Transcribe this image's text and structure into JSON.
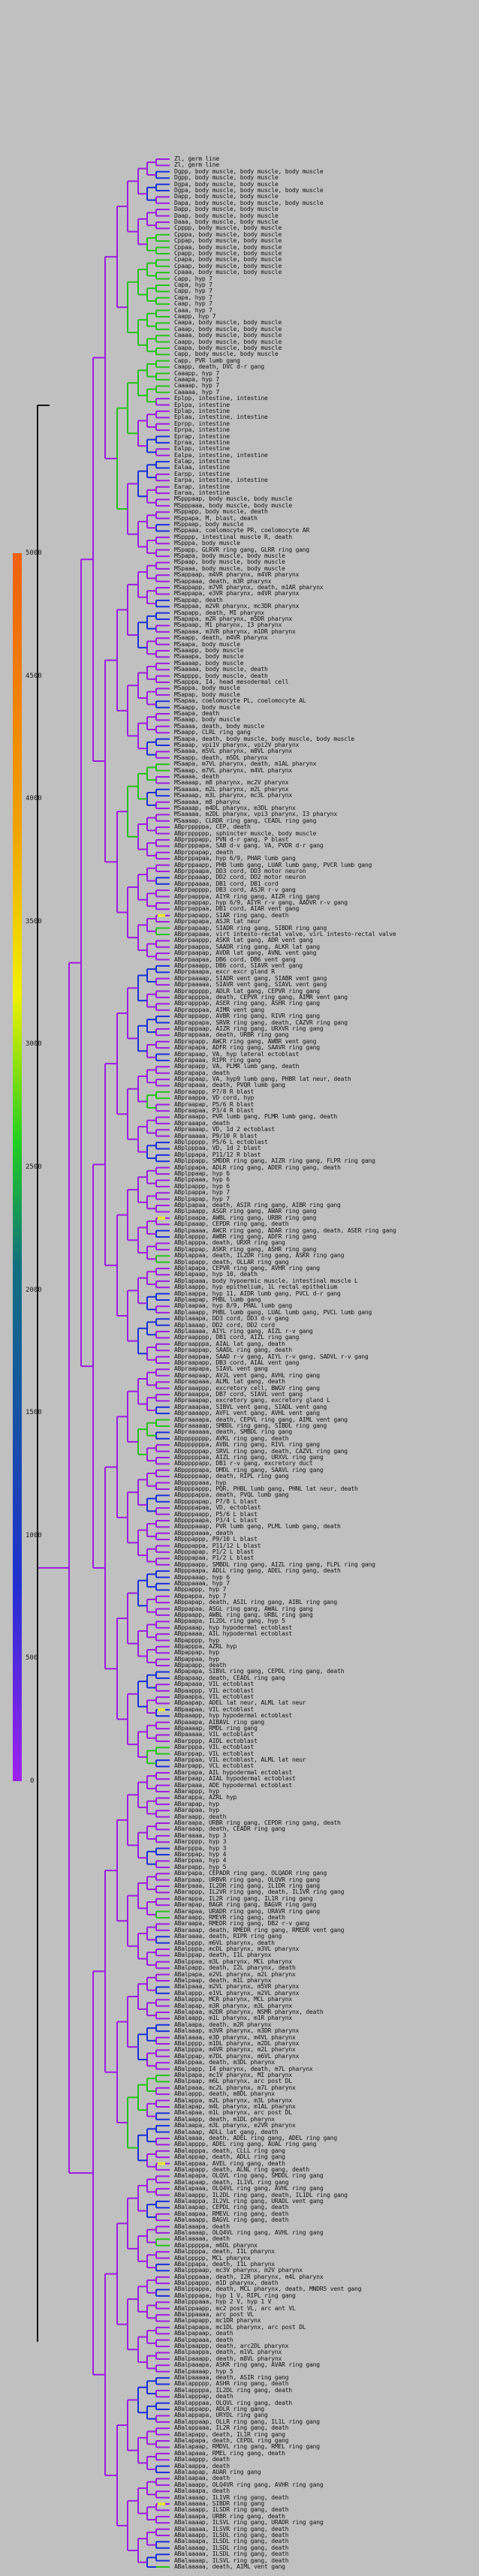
{
  "colors": {
    "background": "#c0c0c0",
    "branch": "#9b1de0",
    "branch_blue": "#1a2fd8",
    "branch_green": "#26c21a",
    "trunk": "#111111",
    "highlight": "#e6e63a",
    "scale_stops": [
      "#a020f0",
      "#2030d0",
      "#107080",
      "#20d020",
      "#f0f000",
      "#f0a000",
      "#f06010"
    ]
  },
  "scale": {
    "ticks": [
      "0",
      "500",
      "1000",
      "1500",
      "2000",
      "2500",
      "3000",
      "3500",
      "4000",
      "4500",
      "5000"
    ]
  },
  "leaves": [
    "Zl, germ line",
    "Zl, germ line",
    "Dgpp, body muscle, body muscle, body muscle",
    "Dgpp, body muscle, body muscle",
    "Dgpa, body muscle, body muscle",
    "Dgpa, body muscle, body muscle, body muscle",
    "Dapp, body muscle, body muscle",
    "Dapa, body muscle, body muscle, body muscle",
    "Dapp, body muscle, body muscle",
    "Daap, body muscle, body muscle",
    "Daaa, body muscle, body muscle",
    "Cpppp, body muscle, body muscle",
    "Cpppa, body muscle, body muscle",
    "Cppap, body muscle, body muscle",
    "Cppaa, body muscle, body muscle",
    "Cpapp, body muscle, body muscle",
    "Cpapa, body muscle, body muscle",
    "Cpaap, body muscle, body muscle",
    "Cpaaa, body muscle, body muscle",
    "Capp, hyp 7",
    "Capa, hyp 7",
    "Capp, hyp 7",
    "Capa, hyp 7",
    "Caap, hyp 7",
    "Caaa, hyp 7",
    "Caapp, hyp 7",
    "Caapa, body muscle, body muscle",
    "Caaap, body muscle, body muscle",
    "Caaaa, body muscle, body muscle",
    "Caapp, body muscle, body muscle",
    "Caapa, body muscle, body muscle",
    "Capp, body muscle, body muscle",
    "Capp, PVR lumb gang",
    "Caapp, death, DVC d-r gang",
    "Caaapp, hyp 7",
    "Caaapa, hyp 7",
    "Caaaap, hyp 7",
    "Caaaaa, hyp 7",
    "Eplpp, intestine, intestine",
    "Eplpa, intestine",
    "Eplap, intestine",
    "Eplaa, intestine, intestine",
    "Eprpp, intestine",
    "Eprpa, intestine",
    "Eprap, intestine",
    "Epraa, intestine",
    "Ealpp, intestine",
    "Ealpa, intestine, intestine",
    "Ealap, intestine",
    "Ealaa, intestine",
    "Earpp, intestine",
    "Earpa, intestine, intestine",
    "Earap, intestine",
    "Earaa, intestine",
    "MSpppaap, body muscle, body muscle",
    "MSpppaaa, body muscle, body muscle",
    "MSppapp, body muscle, death",
    "MSppapa, M, blast, death",
    "MSppaap, body muscle",
    "MSppaaa, coelomocyte PR, coelomocyte AR",
    "MSpppp, intestinal muscle R, death",
    "MSpppa, body muscle",
    "MSpapp, GLRVR ring gang, GLRR ring gang",
    "MSpapa, body muscle, body muscle",
    "MSpaap, body muscle, body muscle",
    "MSpaaa, body muscle, body muscle",
    "MSappaap, m4VR pharynx, m4VR pharynx",
    "MSappaaa, death, m3R pharynx",
    "MSappapp, m7VR pharynx, death, m1AR pharynx",
    "MSappapa, e3VR pharynx, m4VR pharynx",
    "MSappap, death",
    "MSappaa, m2VR pharynx, mc3DR pharynx",
    "MSapapp, death, MI pharynx",
    "MSapapa, m2R pharynx, m5DR pharynx",
    "MSapaap, M1 pharynx, I3 pharynx",
    "MSapaaa, m3VR pharynx, m1DR pharynx",
    "MSaapp, death, m4VR pharynx",
    "MSaapa, body muscle",
    "MSaaapp, body muscle",
    "MSaaapa, body muscle",
    "MSaaaap, body muscle",
    "MSaaaaa, body muscle, death",
    "MSapppp, body muscle, death",
    "MSapppa, I4, head mesodermal cell",
    "MSappa, body muscle",
    "MSapap, body muscle",
    "MSapaa, coelomocyte PL, coelomocyte AL",
    "MSaapp, body muscle",
    "MSaapa, death",
    "MSaaap, body muscle",
    "MSaaaa, death, body muscle",
    "MSaapp, CLRL ring gang",
    "MSaapa, death, body muscle, body muscle, body muscle",
    "MSaaap, vpi1V pharynx, vpi2V pharynx",
    "MSaaaa, m5VL pharynx, m8VL pharynx",
    "MSaapp, death, m5DL pharynx",
    "MSaapa, m7VL pharynx, death, m1AL pharynx",
    "MSaaap, m7VL pharynx, m4VL pharynx",
    "MSaaaa, death",
    "MSaaaap, m8 pharynx, mc2V pharynx",
    "MSaaaaa, m2L pharynx, m2L pharynx",
    "MSaaaap, m3L pharynx, mc3L pharynx",
    "MSaaaaa, m8 pharynx",
    "MSaaaap, m4DL pharynx, m3DL pharynx",
    "MSaaaaa, m2DL pharynx, vpi3 pharynx, I3 pharynx",
    "MSaaaap, CLRDR ring gang, CEADL ring gang",
    "ABprpppppa, CEP, death",
    "ABprpppppp, sphincter muscle, body muscle",
    "ABprpppapp, PVN d-r gang, P blast",
    "ABprpppapa, SAB d-v gang, VA, PVDR d-r gang",
    "ABprppapap, death",
    "ABprppapaa, hyp 6/9, PHAR lumb gang",
    "ABprppaapp, PHB lumb gang, LUAR lumb gang, PVCR lumb gang",
    "ABprppaapa, DD3 cord, DD3 motor neuron",
    "ABprppaaap, DD2 cord, DD2 motor neuron",
    "ABprppaaaa, DB1 cord, DB1 cord",
    "ABprpapppp, DB3 cord, ASJR r-v gang",
    "ABprpapppa, AIYR ring gang, AIZR ring gang",
    "ABprpappap, hyp 6/9, AIYR r-v gang, AADVR r-v gang",
    "ABprpappaa, DB1 cord, AIAR vent gang",
    "ABprpapapp, SIAR ring gang, death",
    "ABprpapapa, ASJR lat neur",
    "ABprpapaap, SIADR ring gang, SIBDR ring gang",
    "ABprpapaaa, virt intesto-rectal valve, virL intesto-rectal valve",
    "ABprpaappp, ASKR lat gang, ADR vent gang",
    "ABprpaappa, SAADR ring gang, ALKR lat gang",
    "ABprpaapap, AVDR lat gang, AVNL vent gang",
    "ABprpaapaa, DB6 cord, DB6 vent gang",
    "ABprpaaapp, DB6 cord, SIAVR vent gang",
    "ABprpaaapa, excr excr gland R",
    "ABprpaaaap, SIADR vent gang, SIABR vent gang",
    "ABprpaaaaa, SIAVR vent gang, SIAVL vent gang",
    "ABprappppp, ADLR lat gang, CEPVR ring gang",
    "ABprappppa, death, CEPVR ring gang, AIMR vent gang",
    "ABprapppap, ASER ring gang, ASHR ring gang",
    "ABprapppaa, AIMR vent gang",
    "ABprappapp, AVBR ring gang, RIVR ring gang",
    "ABprappapa, SRVR ring gang, death, CAZVR ring gang",
    "ABprappaap, AIZR ring gang, URXVR ring gang",
    "ABprappaaa, death, URBR ring gang",
    "ABprapapp, AWCR ring gang, AWBR vent gang",
    "ABprapapa, ADFR ring gang, SAAVR ring gang",
    "ABprapaap, VA, hyp lateral ectoblast",
    "ABprapaaa, RIPR ring gang",
    "ABprapapp, VA, PLMR lumb gang, death",
    "ABprapapa, death",
    "ABprapaap, VA, hyp9 lumb gang, PHBR lat neur, death",
    "ABprapaaa, death, PVQR lumb gang",
    "ABpraappp, P7/8 R blast",
    "ABpraappa, VD cord, hyp",
    "ABpraapap, P5/6 R blast",
    "ABpraapaa, P3/4 R blast",
    "ABpraaapp, PVR lumb gang, PLMR lumb gang, death",
    "ABpraaapa, death",
    "ABpraaaap, VD, 1d 2 ectoblast",
    "ABpraaaaa, P9/10 R blast",
    "ABplppppp, P5/6 L ectoblast",
    "ABplpppaa, VD, 1d 2 blast",
    "ABplppapa, P11/12 R blast",
    "ABplppapp, SMDDR ring gang, AIZR ring gang, FLPR ring gang",
    "ABplppapa, ADLR ring gang, ADER ring gang, death",
    "ABplppaap, hyp 6",
    "ABplppaaa, hyp 6",
    "ABplpappp, hyp 6",
    "ABplpappa, hyp 7",
    "ABplpapap, hyp 7",
    "ABplpapaa, death, ASIR ring gang, AIBR ring gang",
    "ABplpaapp, ASGR ring gang, AWAR ring gang",
    "ABplpaapa, AWBL ring gang, URBR ring gang",
    "ABplpaaap, CEPDR ring gang, death",
    "ABplpaaaa, AWCR ring gang, ADAR ring gang, death, ASER ring gang",
    "ABplapppp, AWBR ring gang, ADFR ring gang",
    "ABplapppa, death, URXR ring gang",
    "ABplappap, ASKR ring gang, ASHR ring gang",
    "ABplappaa, death, IL2DR ring gang, ASKR ring gang",
    "ABplapapp, death, OLLAR ring gang",
    "ABplapapa, CEPVR ring gang, AVHR ring gang",
    "ABplapaap, hyp 10, death",
    "ABplapaaa, body hypoermic muscle, intestinal muscle L",
    "ABplaappp, hyp epithelium, 1L rectal epithelium",
    "ABplaappa, hyp 11, AIDR lumb gang, PVCL d-r gang",
    "ABplaapap, PHBL lumb gang",
    "ABplaapaa, hyp 8/9, PHAL lumb gang",
    "ABplaaapp, PHBL lumb gang, LUAL lumb gang, PVCL lumb gang",
    "ABplaaapa, DD3 cord, DD3 d-v gang",
    "ABplaaaap, DD2 cord, DD2 cord",
    "ABplaaaaa, AIYL ring gang, AIZL r-v gang",
    "ABpraapppp, DB1 cord, AIZL ring gang",
    "ABpraapppa, AIAL lat gang, death",
    "ABpraappap, SAADL ring gang, death",
    "ABpraappaa, SAAD r-v gang, AIYL r-v gang, SADVL r-v gang",
    "ABpraapapp, DB3 cord, AIAL vent gang",
    "ABpraapapa, SIAVL vent gang",
    "ABpraapaap, AVJL vent gang, AVHL ring gang",
    "ABpraapaaa, ALML lat gang, death",
    "ABpraaappp, excretory cell, BWGV ring gang",
    "ABpraaappa, DB7 cord, SIAVL vent gang",
    "ABpraaapap, excretory gang, excretory gland L",
    "ABpraaapaa, SIBVL vent gang, SIADL vent gang",
    "ABpraaaapp, AVFL vent gang, AVHL vent gang",
    "ABpraaaapa, death, CEPVL ring gang, AIML vent gang",
    "ABpraaaaap, SMBDL ring gang, SIBDL ring gang",
    "ABpraaaaaa, death, SMBDL ring gang",
    "ABpppppppp, AVKL ring gang, death",
    "ABpppppppa, AVBL ring gang, RIVL ring gang",
    "ABppppppap, SRVL ring gang, death, CAZVL ring gang",
    "ABppppppaa, AIZL ring gang, URXVL ring gang",
    "ABpppppapp, DB1 r-v gang, excretory duct",
    "ABpppppapa, DMDL ring gang, SAAVL ring gang",
    "ABpppppaap, death, RIPL ring gang",
    "ABpppppaaa, hyp",
    "ABppppappp, PQR, PHBL lumb gang, PHNL lat neur, death",
    "ABppppappa, death, PVQL lumb gang",
    "ABppppapap, P7/8 L blast",
    "ABppppapaa, VD, ectoblast",
    "ABppppaapp, P5/6 L blast",
    "ABppppaapa, P3/4 L blast",
    "ABppppaaap, PVR lumb gang, PLML lumb gang, death",
    "ABppppaaaa, death",
    "ABpppappp, P9/10 L blast",
    "ABpppappa, P11/12 L blast",
    "ABpppapap, P1/2 L blast",
    "ABpppapaa, P1/2 L blast",
    "ABpppaapp, SMBDL ring gang, AIZL ring gang, FLPL ring gang",
    "ABpppaapa, ADLL ring gang, ADEL ring gang, death",
    "ABpppaaap, hyp 6",
    "ABpppaaaa, hyp 7",
    "ABppappp, hyp 7",
    "ABppappa, hyp 7",
    "ABppapap, death, ASIL ring gang, AIBL ring gang",
    "ABppapaa, ASGL ring gang, AWAL ring gang",
    "ABppaapp, AWBL ring gang, URBL ring gang",
    "ABppaapa, IL2DL ring gang, hyp 5",
    "ABppaaap, hyp hypodermal ectoblast",
    "ABppaaaa, AIL hypodermal ectoblast",
    "ABpapppp, hyp",
    "ABpapppa, AZRL hyp",
    "ABpappap, hyp",
    "ABpappaa, hyp",
    "ABpapapp, death",
    "ABpapapa, SIBVL ring gang, CEPDL ring gang, death",
    "ABpapaap, death, CEADL ring gang",
    "ABpapaaa, VIL ectoblast",
    "ABpaappp, VIL ectoblast",
    "ABpaappa, VIL ectoblast",
    "ABpaapap, ADEL lat neur, ALML lat neur",
    "ABpaapaa, VIL ectoblast",
    "ABpaaapp, hyp hypodermal ectoblast",
    "ABpaaapa, AIBAVL ring gang",
    "ABpaaaap, RMDL ring gang",
    "ABpaaaaa, VIL ectoblast",
    "ABarpppp, AIDL ectoblast",
    "ABarpppa, VIL ectoblast",
    "ABarppap, VIL ectoblast",
    "ABarppaa, VIL ectoblast, ALML lat neur",
    "ABarpapp, VCL ectoblast",
    "ABarpapa, AIL hypodermal ectoblast",
    "ABarpaap, AIAL hypodermal ectoblast",
    "ABarpaaa, ADE hypodermal ectoblast",
    "ABarappp, hyp",
    "ABarappa, AZRL hyp",
    "ABarapap, hyp",
    "ABarapaa, hyp",
    "ABaraapp, death",
    "ABaraapa, URBR ring gang, CEPDR ring gang, death",
    "ABaraaap, death, CEADR ring gang",
    "ABaraaaa, hyp 3",
    "ABarpppp, hyp 3",
    "ABarpppa, hyp 3",
    "ABarppap, hyp 4",
    "ABarppaa, hyp 4",
    "ABarpapp, hyp 5",
    "ABarpapa, CEPADR ring gang, OLQADR ring gang",
    "ABarpaap, URBVR ring gang, OLQVR ring gang",
    "ABarpaaa, IL2DR ring gang, IL1DR ring gang",
    "ABarappp, IL2VR ring gang, death, IL1VR ring gang",
    "ABarappa, IL2R ring gang, IL1R ring gang",
    "ABarapap, BAGR ring gang, BAGVR ring gang",
    "ABarapaa, URADR ring gang, URAVR ring gang",
    "ABaraapp, RMEVR ring gang, death",
    "ABaraapa, RMEDR ring gang, DB2 r-v gang",
    "ABaraaap, death, RMEDR ring gang, RMEDR vent gang",
    "ABaraaaa, death, RIPR ring gang",
    "ABalpppp, m6VL pharynx, death",
    "ABalpppa, mcDL pharynx, m3VL pharynx",
    "ABalppap, death, I1L pharynx",
    "ABalppaa, m3L pharynx, MCL pharynx",
    "ABalpapp, death, I2L pharynx, death",
    "ABalpapa, e2VL pharynx, m2L pharynx",
    "ABalpaap, death, m1L pharynx",
    "ABalpaaa, m2VL pharynx, m5VR pharynx",
    "ABalappp, e1VL pharynx, m2VL pharynx",
    "ABalappa, MCR pharynx, MCL pharynx",
    "ABalapap, m3R pharynx, m3L pharynx",
    "ABalapaa, m2DR pharynx, NSMR pharynx, death",
    "ABalaapp, m1L pharynx, m1R pharynx",
    "ABalaapa, death, m2R pharynx",
    "ABalaaap, m3VR pharynx, m3DR pharynx",
    "ABalaaaa, e3D pharynx, m4VL pharynx",
    "ABalpppp, m1DL pharynx, m2DL pharynx",
    "ABalpppa, m4VR pharynx, m2L pharynx",
    "ABalppap, m7DL pharynx, m6VL pharynx",
    "ABalppaa, death, m3DL pharynx",
    "ABalpapp, I4 pharynx, death, m7L pharynx",
    "ABalpapa, mc1V pharynx, MI pharynx",
    "ABalpaap, m6L pharynx, arc post DL",
    "ABalpaaa, mc2L pharynx, m7L pharynx",
    "ABalappp, death, m8DL pharynx",
    "ABalappa, m2L pharynx, m3L pharynx",
    "ABalapap, m4L pharynx, m1AL pharynx",
    "ABalapaa, m1L pharynx, arc post DL",
    "ABalaapp, death, m1DL pharynx",
    "ABalaapa, m3L pharynx, e2VR pharynx",
    "ABalaaap, ADLL lat gang, death",
    "ABalaaaa, death, ADEL ring gang, ADEL ring gang",
    "ABalapppp, ADEL ring gang, AUAL ring gang",
    "ABalapppa, death, CLLL ring gang",
    "ABalappap, death, ADLL ring gang",
    "ABalappaa, AVEL ring gang, death",
    "ABalapapp, death, ALNL ring gang, death",
    "ABalapapa, OLQVL ring gang, SMDDL ring gang",
    "ABalapaap, death, IL1VL ring gang",
    "ABalapaaa, OLQ4VL ring gang, AVHL ring gang",
    "ABalaappp, IL2DL ring gang, death, IL1DL ring gang",
    "ABalaappa, IL2VL ring gang, URADL vent gang",
    "ABalaapap, CEPDL ring gang, death",
    "ABalaapaa, RMEVL ring gang, death",
    "ABalaaapp, BAGVL ring gang, death",
    "ABalaaapa, death",
    "ABalaaaap, OLQ4VL ring gang, AVHL ring gang",
    "ABalaaaaa, death",
    "ABalpppppa, m6DL pharynx",
    "ABalppppa, death, I1L pharynx",
    "ABalppppp, MCL pharynx",
    "ABalppapa, death, I1L pharynx",
    "ABalpppaap, mc3V pharynx, m2V pharynx",
    "ABalpppaaa, death, I2R pharynx, m4L pharynx",
    "ABalppappp, m1D pharynx, death",
    "ABalppappa, death, MCL pharynx, death, MNDR5 vent gang",
    "ABalpppapa, hyp 1 V, RIPL ring gang",
    "ABalpppaaa, hyp 2 V, hyp 1 V",
    "ABalppaapp, mc2 post VL, arc ant VL",
    "ABalppaaaa, arc post VL",
    "ABalpapapp, mc1DR pharynx",
    "ABalpapapa, mc1DL pharynx, arc post DL",
    "ABalpapaap, death",
    "ABalpapaaa, death",
    "ABalpaappp, death, arc2DL pharynx",
    "ABalpaappa, death, m1VL pharynx",
    "ABalpaaapp, death, m8VL pharynx",
    "ABalpaaapa, ASKR ring gang, AVAR ring gang",
    "ABalpaaaap, hyp 5",
    "ABalpaaaaa, death, ASIR ring gang",
    "ABalappppp, ASHR ring gang, death",
    "ABalappppa, IL2DL ring gang, death",
    "ABalapppap, death",
    "ABalapppaa, OLQVL ring gang, death",
    "ABalappapp, ADLR ring gang",
    "ABalappapa, URYDL ring gang",
    "ABalappaap, OLLR ring gang, IL1L ring gang",
    "ABalappaaa, IL2R ring gang, death",
    "ABalapapp, death, IL1R ring gang",
    "ABalapapa, death, CEPDL ring gang",
    "ABalapaap, RMDVL ring gang, RMEL ring gang",
    "ABalapaaa, RMEL ring gang, death",
    "ABalaappp, death",
    "ABalaappa, death",
    "ABalaapap, AUAR ring gang",
    "ABalaapaa, death",
    "ABalaaapp, OLQ4VR ring gang, AVHR ring gang",
    "ABalaaapa, death",
    "ABalaaaap, IL1VR ring gang, death",
    "ABalaaaaa, SIBDR ring gang",
    "ABalaaapp, ILSDR ring gang, death",
    "ABalaaapa, URBR ring gang, death",
    "ABalaaaap, ILSVL ring gang, URADR ring gang",
    "ABalaaaaa, ILSVR ring gang, death",
    "ABalaaapp, ILSDL ring gang, death",
    "ABalaaapa, ILSDL ring gang, death",
    "ABalaaaap, ILSDL ring gang, death",
    "ABalaaaaa, ILSDL ring gang, death",
    "ABalaaaap, ILSVL ring gang, death",
    "ABalaaaaa, death, AIML vent gang"
  ]
}
